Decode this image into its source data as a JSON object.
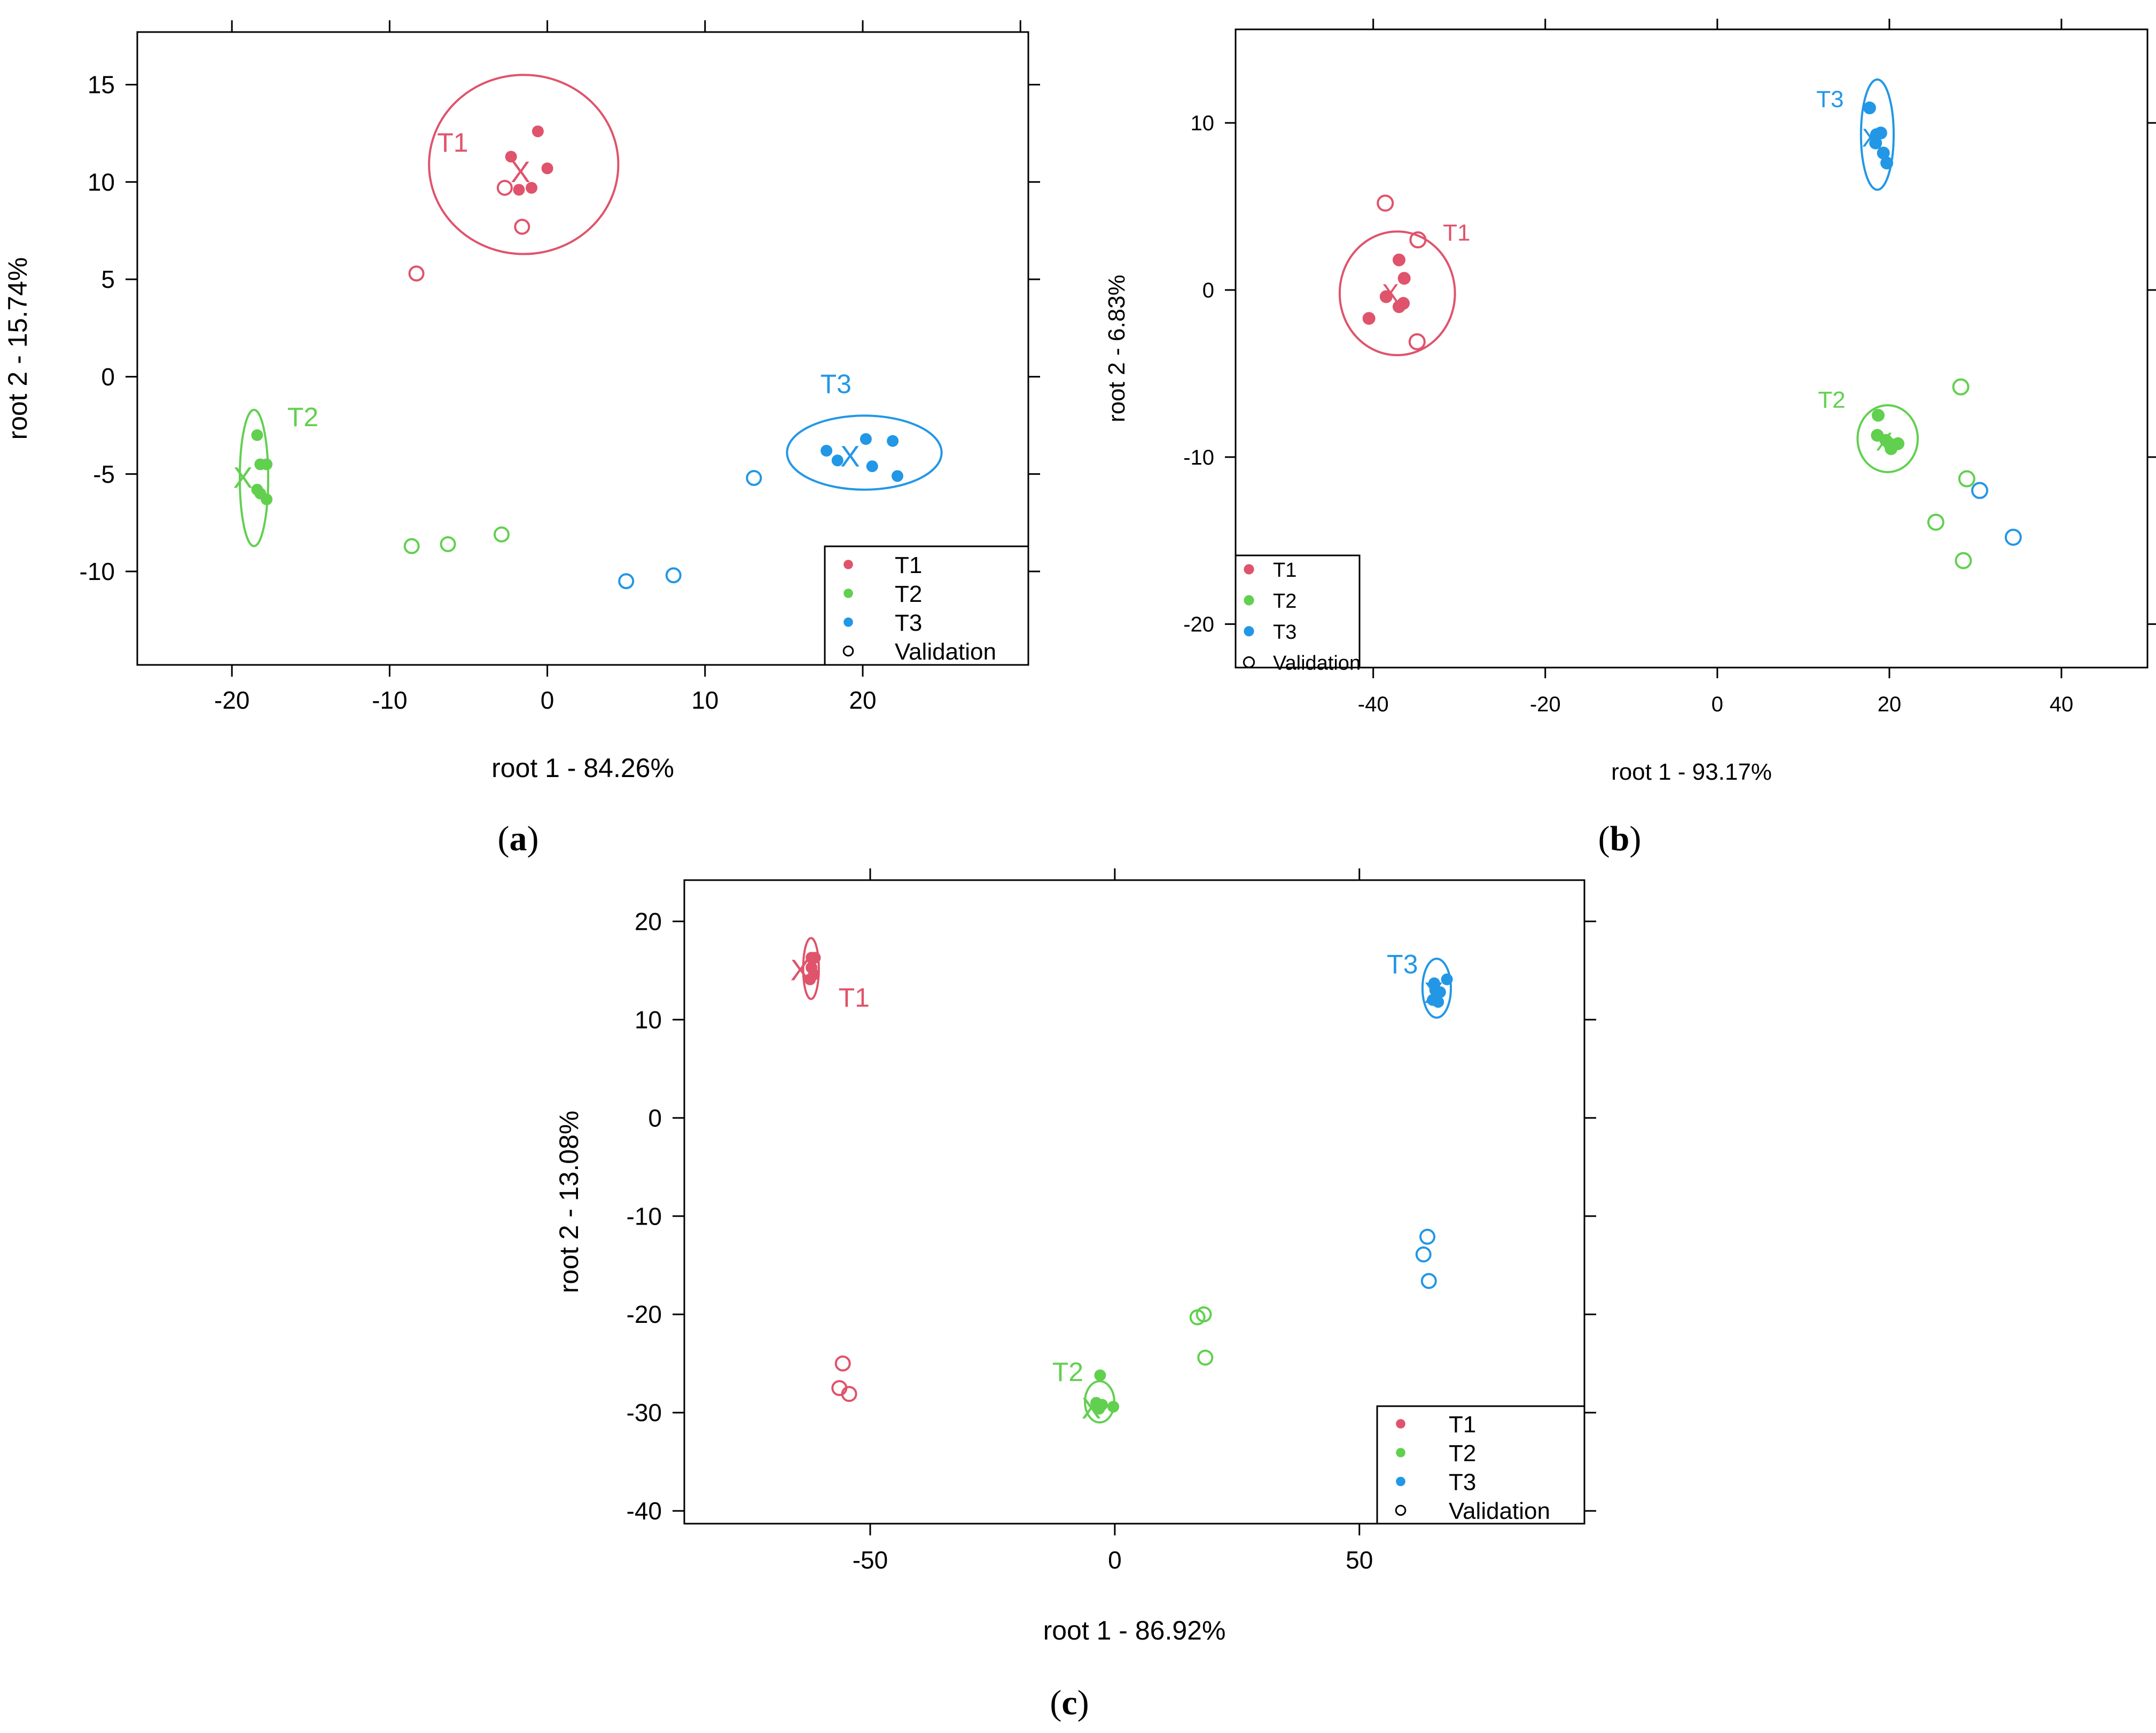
{
  "figure": {
    "panels": [
      {
        "caption_letter": "a"
      },
      {
        "caption_letter": "b"
      },
      {
        "caption_letter": "c"
      }
    ]
  },
  "colors": {
    "T1": "#DF536B",
    "T2": "#61D04F",
    "T3": "#2297E6"
  },
  "chart_data": [
    {
      "type": "scatter",
      "panel": "a",
      "xlabel": "root 1 - 84.26%",
      "ylabel": "root 2 - 15.74%",
      "xlim": [
        -26,
        30.5
      ],
      "ylim": [
        -14.8,
        17.7
      ],
      "xticks": [
        -20,
        -10,
        0,
        10,
        20
      ],
      "yticks": [
        -10,
        -5,
        0,
        5,
        10,
        15
      ],
      "top_ticks": [
        -20,
        -10,
        0,
        10,
        20,
        30
      ],
      "right_ticks": [
        -10,
        -5,
        0,
        5,
        10,
        15
      ],
      "legend": {
        "entries": [
          "T1",
          "T2",
          "T3",
          "Validation"
        ],
        "position": "bottom-right"
      },
      "series": [
        {
          "name": "T1",
          "color": "#DF536B",
          "points": [
            [
              -2.3,
              11.3
            ],
            [
              -0.6,
              12.6
            ],
            [
              0,
              10.7
            ],
            [
              -1,
              9.7
            ],
            [
              -1.8,
              9.6
            ]
          ],
          "validation": [
            [
              -2.7,
              9.7
            ],
            [
              -1.6,
              7.7
            ],
            [
              -8.3,
              5.3
            ]
          ],
          "centroid": [
            -1.7,
            10.5
          ],
          "ellipse": {
            "center": [
              -1.5,
              10.9
            ],
            "rx": 6.0,
            "ry": 4.6
          },
          "label": {
            "text": "T1",
            "at": [
              -6,
              12
            ]
          }
        },
        {
          "name": "T2",
          "color": "#61D04F",
          "points": [
            [
              -18.4,
              -3
            ],
            [
              -17.8,
              -4.5
            ],
            [
              -18.2,
              -4.5
            ],
            [
              -18.4,
              -5.8
            ],
            [
              -18.2,
              -6
            ],
            [
              -17.8,
              -6.3
            ]
          ],
          "validation": [
            [
              -8.6,
              -8.7
            ],
            [
              -6.3,
              -8.6
            ],
            [
              -2.9,
              -8.1
            ]
          ],
          "centroid": [
            -19.3,
            -5.2
          ],
          "ellipse": {
            "center": [
              -18.6,
              -5.2
            ],
            "rx": 0.9,
            "ry": 3.5
          },
          "label": {
            "text": "T2",
            "at": [
              -15.5,
              -2.1
            ]
          }
        },
        {
          "name": "T3",
          "color": "#2297E6",
          "points": [
            [
              17.7,
              -3.8
            ],
            [
              18.4,
              -4.3
            ],
            [
              20.2,
              -3.2
            ],
            [
              21.9,
              -3.3
            ],
            [
              20.6,
              -4.6
            ],
            [
              22.2,
              -5.1
            ]
          ],
          "validation": [
            [
              13.1,
              -5.2
            ],
            [
              5,
              -10.5
            ],
            [
              8,
              -10.2
            ]
          ],
          "centroid": [
            19.2,
            -4.1
          ],
          "ellipse": {
            "center": [
              20.1,
              -3.9
            ],
            "rx": 4.9,
            "ry": 1.9
          },
          "label": {
            "text": "T3",
            "at": [
              18.3,
              -0.4
            ]
          }
        }
      ]
    },
    {
      "type": "scatter",
      "panel": "b",
      "xlabel": "root 1 - 93.17%",
      "ylabel": "root 2 - 6.83%",
      "xlim": [
        -56,
        50
      ],
      "ylim": [
        -22.6,
        15.6
      ],
      "xticks": [
        -40,
        -20,
        0,
        20,
        40
      ],
      "yticks": [
        -20,
        -10,
        0,
        10
      ],
      "top_ticks": [
        -40,
        -20,
        0,
        20,
        40
      ],
      "right_ticks": [
        -20,
        -10,
        0,
        10
      ],
      "legend": {
        "entries": [
          "T1",
          "T2",
          "T3",
          "Validation"
        ],
        "position": "bottom-left"
      },
      "series": [
        {
          "name": "T1",
          "color": "#DF536B",
          "points": [
            [
              -40.5,
              -1.7
            ],
            [
              -38.5,
              -0.4
            ],
            [
              -37,
              1.8
            ],
            [
              -36.4,
              0.7
            ],
            [
              -36.5,
              -0.8
            ],
            [
              -37,
              -1
            ]
          ],
          "validation": [
            [
              -38.6,
              5.2
            ],
            [
              -34.8,
              3
            ],
            [
              -34.9,
              -3.1
            ]
          ],
          "centroid": [
            -38,
            -0.2
          ],
          "ellipse": {
            "center": [
              -37.2,
              -0.2
            ],
            "rx": 6.7,
            "ry": 3.7
          },
          "label": {
            "text": "T1",
            "at": [
              -30.3,
              3.4
            ]
          }
        },
        {
          "name": "T2",
          "color": "#61D04F",
          "points": [
            [
              18.7,
              -7.5
            ],
            [
              18.6,
              -8.7
            ],
            [
              19.6,
              -9
            ],
            [
              20,
              -9.2
            ],
            [
              20.2,
              -9.5
            ],
            [
              21,
              -9.2
            ]
          ],
          "validation": [
            [
              28.3,
              -5.8
            ],
            [
              29,
              -11.3
            ],
            [
              25.4,
              -13.9
            ],
            [
              28.6,
              -16.2
            ]
          ],
          "centroid": [
            19.4,
            -9.1
          ],
          "ellipse": {
            "center": [
              19.8,
              -8.9
            ],
            "rx": 3.5,
            "ry": 2.0
          },
          "label": {
            "text": "T2",
            "at": [
              13.3,
              -6.6
            ]
          }
        },
        {
          "name": "T3",
          "color": "#2297E6",
          "points": [
            [
              17.7,
              10.9
            ],
            [
              18.5,
              9.3
            ],
            [
              19,
              9.4
            ],
            [
              19.3,
              8.2
            ],
            [
              19.7,
              7.6
            ],
            [
              18.4,
              8.8
            ]
          ],
          "validation": [
            [
              30.5,
              -12
            ],
            [
              34.4,
              -14.8
            ]
          ],
          "centroid": [
            17.8,
            9.1
          ],
          "ellipse": {
            "center": [
              18.6,
              9.3
            ],
            "rx": 1.9,
            "ry": 3.3
          },
          "label": {
            "text": "T3",
            "at": [
              13.1,
              11.4
            ]
          }
        }
      ]
    },
    {
      "type": "scatter",
      "panel": "c",
      "xlabel": "root 1 - 86.92%",
      "ylabel": "root 2 - 13.08%",
      "xlim": [
        -88,
        96
      ],
      "ylim": [
        -41.3,
        24.2
      ],
      "xticks": [
        -50,
        0,
        50
      ],
      "yticks": [
        -40,
        -30,
        -20,
        -10,
        0,
        10,
        20
      ],
      "top_ticks": [
        -50,
        0,
        50
      ],
      "right_ticks": [
        -40,
        -30,
        -20,
        -10,
        0,
        10,
        20
      ],
      "legend": {
        "entries": [
          "T1",
          "T2",
          "T3",
          "Validation"
        ],
        "position": "bottom-right"
      },
      "series": [
        {
          "name": "T1",
          "color": "#DF536B",
          "points": [
            [
              -62,
              16.3
            ],
            [
              -61.3,
              16.3
            ],
            [
              -62,
              15.3
            ],
            [
              -61.5,
              14.6
            ],
            [
              -62.3,
              14.1
            ]
          ],
          "validation": [
            [
              -55.6,
              -25
            ],
            [
              -56.3,
              -27.5
            ],
            [
              -54.3,
              -28.1
            ]
          ],
          "centroid": [
            -64.3,
            15
          ],
          "ellipse": {
            "center": [
              -62.1,
              15.2
            ],
            "rx": 1.6,
            "ry": 3.1
          },
          "label": {
            "text": "T1",
            "at": [
              -53.3,
              12.2
            ]
          }
        },
        {
          "name": "T2",
          "color": "#61D04F",
          "points": [
            [
              -3,
              -26.2
            ],
            [
              -3.8,
              -29
            ],
            [
              -2.6,
              -29.2
            ],
            [
              -3.2,
              -29.6
            ],
            [
              -0.3,
              -29.4
            ]
          ],
          "validation": [
            [
              16.9,
              -20.3
            ],
            [
              18.2,
              -20
            ],
            [
              18.5,
              -24.4
            ]
          ],
          "centroid": [
            -4.8,
            -29.6
          ],
          "ellipse": {
            "center": [
              -3.1,
              -28.9
            ],
            "rx": 3.0,
            "ry": 2.1
          },
          "label": {
            "text": "T2",
            "at": [
              -9.6,
              -25.9
            ]
          }
        },
        {
          "name": "T3",
          "color": "#2297E6",
          "points": [
            [
              65.3,
              13.7
            ],
            [
              67.9,
              14.1
            ],
            [
              66.5,
              12.8
            ],
            [
              65,
              12
            ],
            [
              66.1,
              11.8
            ],
            [
              65.5,
              13
            ]
          ],
          "validation": [
            [
              63.9,
              -12.1
            ],
            [
              63.1,
              -13.9
            ],
            [
              64.2,
              -16.6
            ]
          ],
          "centroid": [
            65.2,
            12.7
          ],
          "ellipse": {
            "center": [
              65.8,
              13.2
            ],
            "rx": 2.9,
            "ry": 3.0
          },
          "label": {
            "text": "T3",
            "at": [
              58.8,
              15.6
            ]
          }
        }
      ]
    }
  ]
}
